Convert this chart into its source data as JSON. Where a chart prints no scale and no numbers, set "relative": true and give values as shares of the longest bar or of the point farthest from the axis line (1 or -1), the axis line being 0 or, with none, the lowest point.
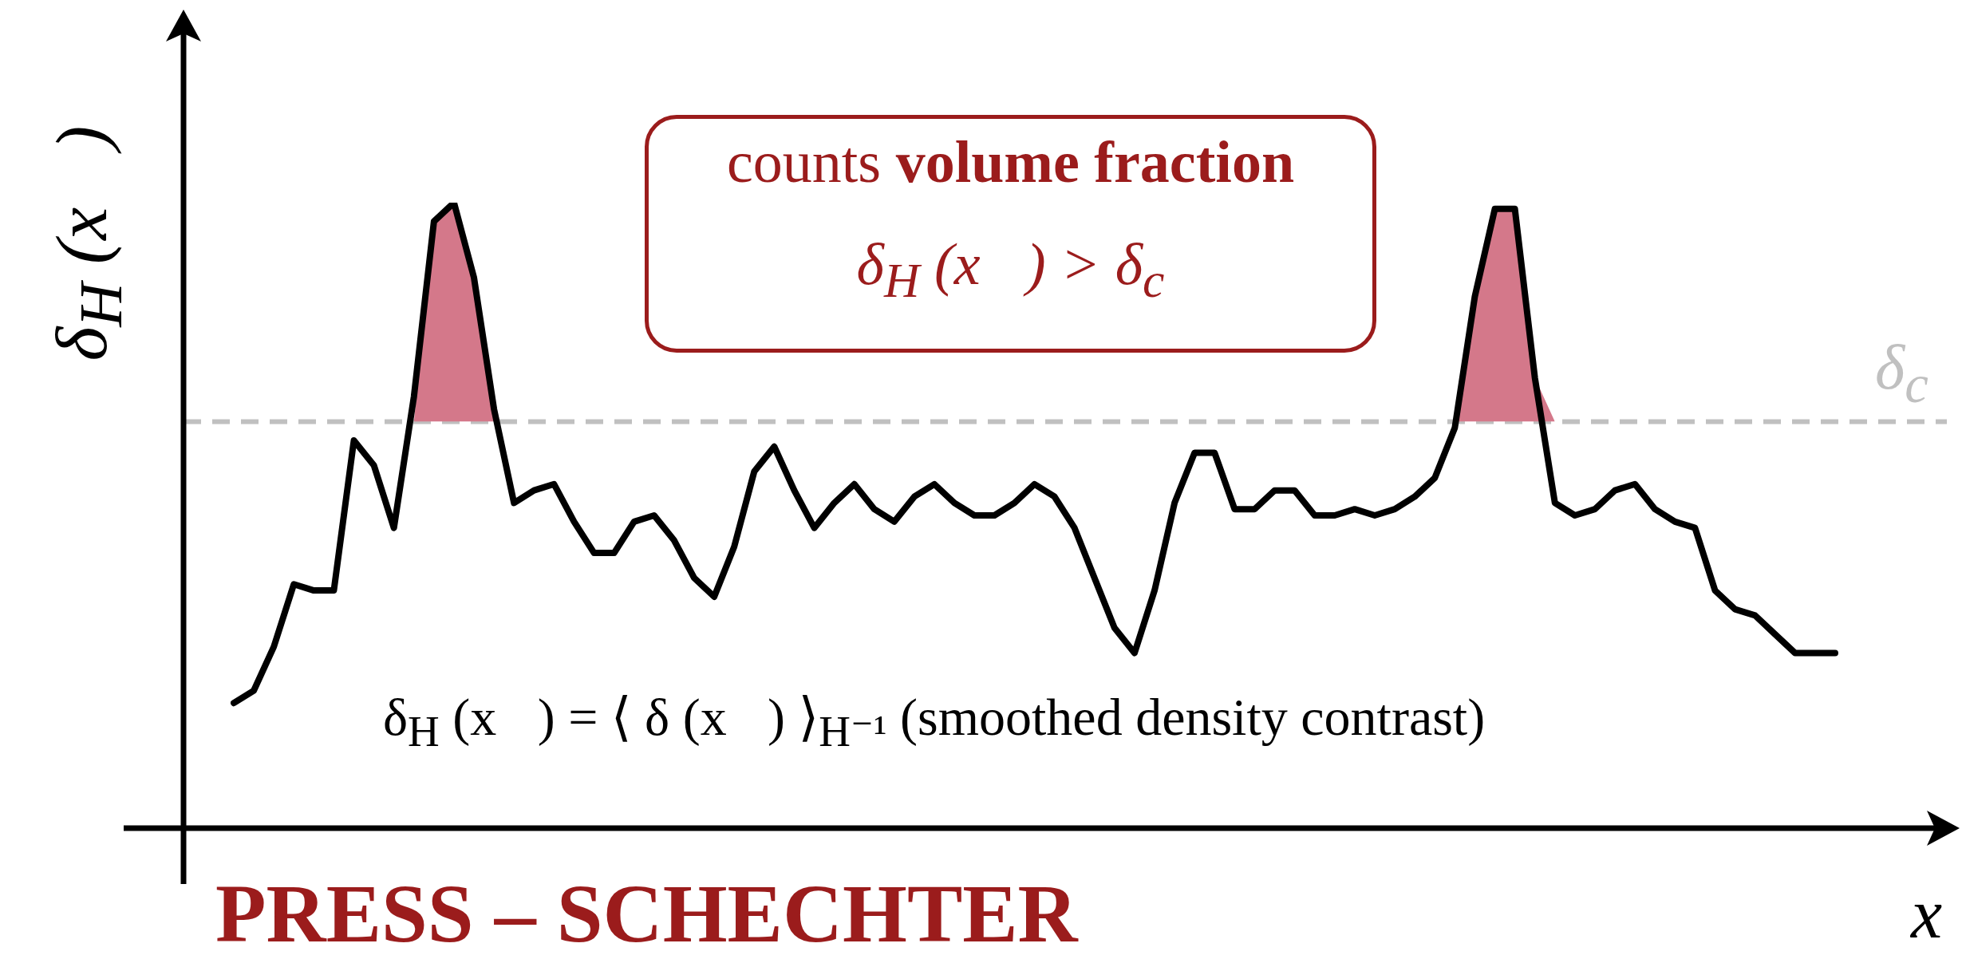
{
  "chart_data": {
    "type": "line",
    "relative": true,
    "title": "PRESS – SCHECHTER",
    "xlabel": "x⃗",
    "ylabel": "δ$_{H}$ (x⃗)",
    "annotations": [
      "counts volume fraction",
      "δ$_{H}$ (x⃗) > δ$_{c}$",
      "δ$_{H}$ (x⃗) = ⟨ δ (x⃗) ⟩$_{H⁻¹}$  (smoothed density contrast)"
    ],
    "categories": [
      null,
      null,
      null,
      null,
      null,
      null,
      null,
      null,
      null,
      null,
      null,
      null,
      null,
      null,
      null,
      null,
      null,
      null,
      null,
      null,
      null,
      null,
      null,
      null,
      null,
      null,
      null,
      null,
      null,
      null,
      null,
      null,
      null,
      null,
      null,
      null,
      null,
      null,
      null,
      null,
      null,
      null,
      null,
      null,
      null,
      null,
      null,
      null,
      null,
      null,
      null,
      null,
      null,
      null,
      null,
      null,
      null,
      null,
      null,
      null,
      null,
      null,
      null,
      null,
      null,
      null,
      null,
      null,
      null,
      null,
      null,
      null,
      null,
      null,
      null,
      null,
      null,
      null,
      null,
      null,
      null
    ],
    "series": [
      {
        "color": "#000000",
        "values": [
          0.2,
          0.22,
          0.29,
          0.39,
          0.38,
          0.38,
          0.62,
          0.58,
          0.48,
          0.69,
          0.97,
          1.0,
          0.88,
          0.67,
          0.52,
          0.54,
          0.55,
          0.49,
          0.44,
          0.44,
          0.49,
          0.5,
          0.46,
          0.4,
          0.37,
          0.45,
          0.57,
          0.61,
          0.54,
          0.48,
          0.52,
          0.55,
          0.51,
          0.49,
          0.53,
          0.55,
          0.52,
          0.5,
          0.5,
          0.52,
          0.55,
          0.53,
          0.48,
          0.4,
          0.32,
          0.28,
          0.38,
          0.52,
          0.6,
          0.6,
          0.51,
          0.51,
          0.54,
          0.54,
          0.5,
          0.5,
          0.51,
          0.5,
          0.51,
          0.53,
          0.56,
          0.64,
          0.85,
          0.99,
          0.99,
          0.72,
          0.52,
          0.5,
          0.51,
          0.54,
          0.55,
          0.51,
          0.49,
          0.48,
          0.38,
          0.35,
          0.34,
          0.31,
          0.28,
          0.28,
          0.28
        ]
      },
      {
        "type": "area",
        "color": "#d4788a",
        "values": [
          null,
          null,
          null,
          null,
          null,
          null,
          null,
          null,
          null,
          0.65,
          0.97,
          1.0,
          0.88,
          0.65,
          null,
          null,
          null,
          null,
          null,
          null,
          null,
          null,
          null,
          null,
          null,
          null,
          null,
          null,
          null,
          null,
          null,
          null,
          null,
          null,
          null,
          null,
          null,
          null,
          null,
          null,
          null,
          null,
          null,
          null,
          null,
          null,
          null,
          null,
          null,
          null,
          null,
          null,
          null,
          null,
          null,
          null,
          null,
          null,
          null,
          null,
          null,
          0.65,
          0.85,
          0.99,
          0.99,
          0.72,
          0.65,
          null,
          null,
          null,
          null,
          null,
          null,
          null,
          null,
          null,
          null,
          null,
          null,
          null,
          null
        ]
      }
    ],
    "ref_lines": [
      {
        "axis": "y",
        "value": 0.65,
        "label": "δ$_{c}$",
        "color": "#c0c0c0",
        "line_style": "dashed"
      }
    ],
    "legend": false
  }
}
